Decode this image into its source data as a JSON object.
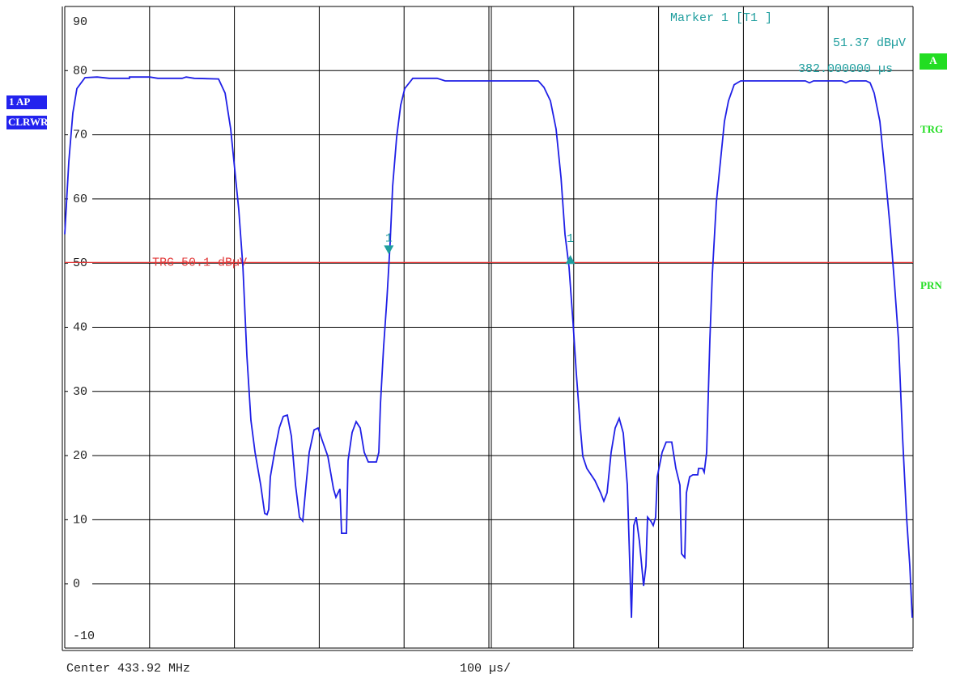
{
  "chart_data": {
    "type": "line",
    "x": [
      0,
      4.8,
      9.5,
      14.3,
      23.9,
      38.2,
      52.5,
      76.3,
      76.3,
      100.2,
      109.7,
      138.4,
      143.1,
      152.7,
      181.3,
      189,
      195.6,
      200.4,
      205.2,
      210,
      214.7,
      219.5,
      224.3,
      231,
      235.7,
      238.5,
      240.5,
      242.4,
      248.1,
      252.9,
      257.6,
      262.4,
      267.2,
      272,
      276.7,
      280.5,
      284.4,
      288.2,
      293.9,
      298.7,
      303.4,
      310.1,
      316.8,
      319.7,
      324.4,
      326.3,
      332.1,
      334,
      338.7,
      343.5,
      348.3,
      353.1,
      357.8,
      367.4,
      370.2,
      372.1,
      375.9,
      379.8,
      383.6,
      386.5,
      391.2,
      396,
      400.8,
      410.3,
      438.9,
      448.5,
      496.2,
      558.2,
      564.9,
      572.5,
      579.2,
      585,
      589.7,
      594.5,
      599.2,
      603,
      607.8,
      610.7,
      615.5,
      625,
      631.7,
      635.5,
      639.3,
      644.1,
      648.9,
      653.6,
      658.4,
      663.2,
      668,
      670.8,
      673.7,
      677.5,
      682.3,
      685.1,
      687,
      690.8,
      693.7,
      696.6,
      698.5,
      704.2,
      709,
      715.6,
      720.4,
      725.2,
      727.1,
      730.9,
      732.8,
      736.6,
      740.5,
      746.2,
      747.1,
      751.9,
      753.8,
      756.7,
      760.5,
      763.4,
      768.1,
      772.9,
      777.7,
      782.4,
      789.1,
      796.8,
      830.2,
      873.1,
      877.9,
      882.6,
      916,
      920.8,
      925.6,
      944.7,
      949.4,
      954.2,
      960.9,
      968.5,
      973.3,
      978.1,
      982.8,
      987.6,
      992.4,
      996.2,
      999
    ],
    "values": [
      54.5,
      65.8,
      73.4,
      77.2,
      78.9,
      79,
      78.8,
      78.8,
      79,
      79,
      78.8,
      78.8,
      79,
      78.8,
      78.7,
      76.5,
      70.9,
      64.6,
      58.3,
      49.4,
      35.6,
      25.5,
      20.5,
      15.4,
      11,
      10.8,
      11.6,
      16.7,
      21.1,
      24.3,
      26.1,
      26.3,
      23,
      15.4,
      10.4,
      9.8,
      15.4,
      20.5,
      24,
      24.3,
      22.4,
      19.9,
      14.8,
      13.5,
      14.8,
      7.9,
      7.9,
      19.2,
      23.6,
      25.3,
      24.3,
      20.5,
      19,
      19,
      20.5,
      28,
      36.9,
      44.4,
      53.2,
      62,
      69.6,
      74.6,
      77.2,
      78.8,
      78.8,
      78.4,
      78.4,
      78.4,
      77.4,
      75.3,
      70.9,
      63.3,
      54.5,
      49.4,
      40.6,
      33,
      24.3,
      19.9,
      18,
      16.1,
      14.2,
      12.9,
      14.2,
      20.5,
      24.3,
      25.8,
      23.5,
      15.4,
      -5.3,
      9.1,
      10.4,
      6.6,
      -0.3,
      2.8,
      10.4,
      9.8,
      9.1,
      10.4,
      16.7,
      20.5,
      22.1,
      22.1,
      18,
      15.4,
      4.7,
      4.1,
      14.2,
      16.7,
      17,
      17,
      18,
      18,
      17.4,
      20.5,
      38.1,
      48.2,
      59.5,
      65.8,
      72.1,
      75.3,
      77.8,
      78.4,
      78.4,
      78.4,
      78.1,
      78.4,
      78.4,
      78.1,
      78.4,
      78.4,
      78.1,
      76.5,
      72.1,
      62,
      55.1,
      46.9,
      38.1,
      23,
      10.4,
      2.8,
      -5.3
    ],
    "color": "#1f1fe6",
    "xlim": [
      0,
      1000
    ],
    "ylim": [
      -10,
      90
    ],
    "yticks": [
      -10,
      0,
      10,
      20,
      30,
      40,
      50,
      60,
      70,
      80,
      90
    ],
    "grid": true,
    "trigger": {
      "value": 50.1,
      "label": "TRG 50.1 dBµV",
      "color": "#e23a3a"
    },
    "marker_color": "#1f9e9e",
    "marker_title": "Marker 1 [T1 ]",
    "markers": [
      {
        "label": "1",
        "x": 382,
        "y": 51.37,
        "y_label": "51.37 dBµV",
        "x_label": "382.000000 µs"
      },
      {
        "label": "1",
        "x": 596,
        "y": 50
      }
    ],
    "center_label": "Center 433.92 MHz",
    "span_label": "100 µs/",
    "trace_labels": [
      "1 AP",
      "CLRWR"
    ],
    "status_labels": [
      "A",
      "TRG",
      "PRN"
    ]
  }
}
